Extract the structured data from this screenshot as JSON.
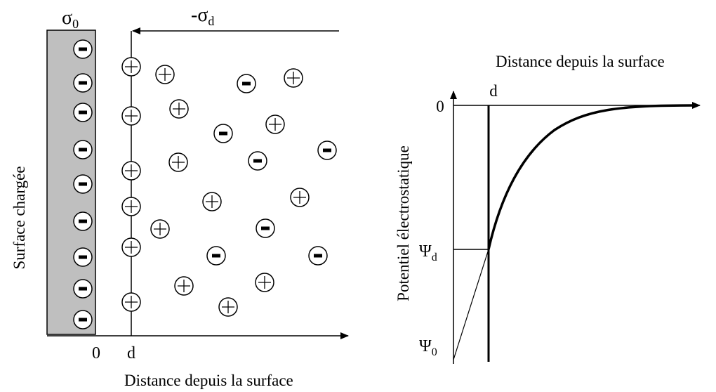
{
  "left_panel": {
    "sigma0": "σ",
    "sigma0_sub": "0",
    "sigmad_prefix": "-σ",
    "sigmad_sub": "d",
    "vertical_label": "Surface chargée",
    "x_origin": "0",
    "x_d": "d",
    "x_axis_label": "Distance depuis la surface",
    "surface_color": "#bfbfbf",
    "surface_charges": 9,
    "ion_sign_negative": "−",
    "ion_sign_positive": "+"
  },
  "right_panel": {
    "top_label": "Distance depuis la surface",
    "d_label": "d",
    "zero_label": "0",
    "psi_d": "Ψ",
    "psi_d_sub": "d",
    "psi_0": "Ψ",
    "psi_0_sub": "0",
    "y_axis_label": "Potentiel électrostatique"
  }
}
